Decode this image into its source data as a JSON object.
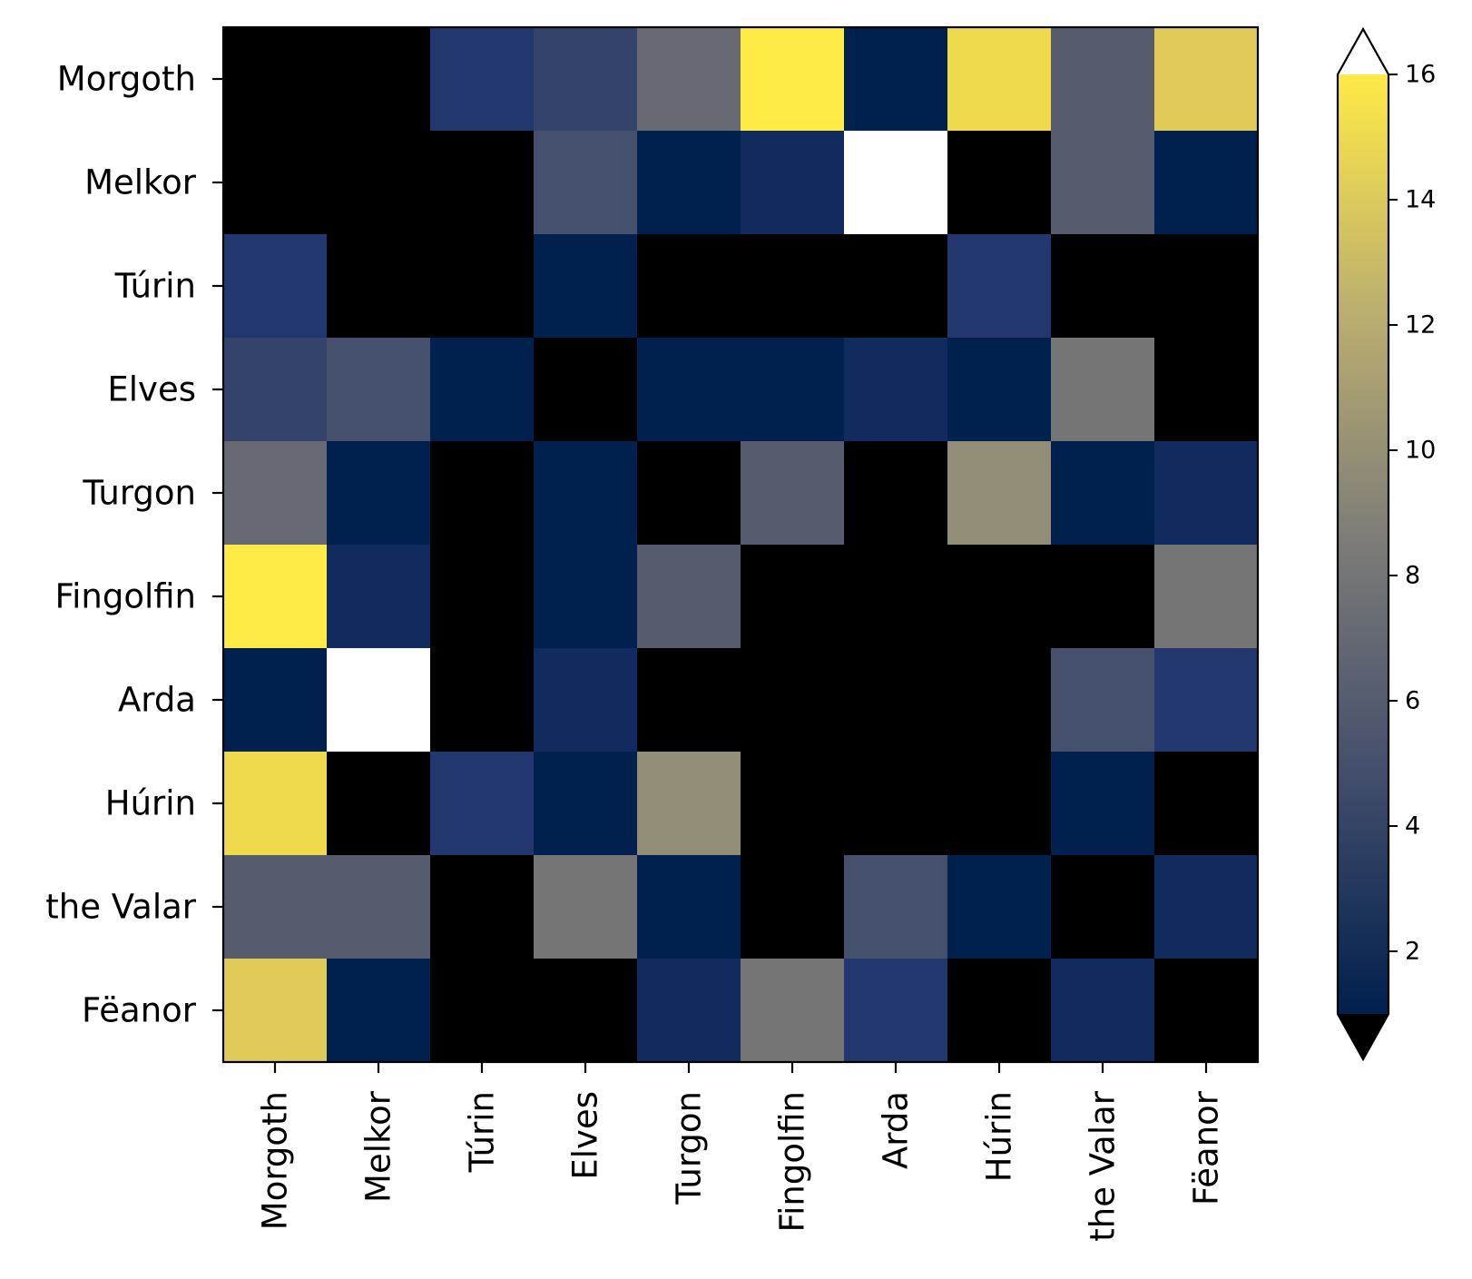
{
  "chart_data": {
    "type": "heatmap",
    "title": "",
    "xlabel": "",
    "ylabel": "",
    "x_categories": [
      "Morgoth",
      "Melkor",
      "Túrin",
      "Elves",
      "Turgon",
      "Fingolfin",
      "Arda",
      "Húrin",
      "the Valar",
      "Fëanor"
    ],
    "y_categories": [
      "Morgoth",
      "Melkor",
      "Túrin",
      "Elves",
      "Turgon",
      "Fingolfin",
      "Arda",
      "Húrin",
      "the Valar",
      "Fëanor"
    ],
    "values": [
      [
        0,
        0,
        3,
        4,
        7,
        16,
        1,
        15,
        6,
        14
      ],
      [
        0,
        0,
        0,
        5,
        1,
        2,
        17,
        0,
        6,
        1
      ],
      [
        3,
        0,
        0,
        1,
        0,
        0,
        0,
        3,
        0,
        0
      ],
      [
        4,
        5,
        1,
        0,
        1,
        1,
        2,
        1,
        8,
        0
      ],
      [
        7,
        1,
        0,
        1,
        0,
        6,
        0,
        10,
        1,
        2
      ],
      [
        16,
        2,
        0,
        1,
        6,
        0,
        0,
        0,
        0,
        8
      ],
      [
        1,
        17,
        0,
        2,
        0,
        0,
        0,
        0,
        5,
        3
      ],
      [
        15,
        0,
        3,
        1,
        10,
        0,
        0,
        0,
        1,
        0
      ],
      [
        6,
        6,
        0,
        8,
        1,
        0,
        5,
        1,
        0,
        2
      ],
      [
        14,
        1,
        0,
        0,
        2,
        8,
        3,
        0,
        2,
        0
      ]
    ],
    "colormap": "cividis",
    "color_range": [
      1,
      16
    ],
    "under_color": "#000000",
    "over_color": "#ffffff",
    "colorbar": {
      "ticks": [
        2,
        4,
        6,
        8,
        10,
        12,
        14,
        16
      ],
      "tick_labels": [
        "2",
        "4",
        "6",
        "8",
        "10",
        "12",
        "14",
        "16"
      ],
      "extend": "both",
      "position": "right"
    }
  }
}
